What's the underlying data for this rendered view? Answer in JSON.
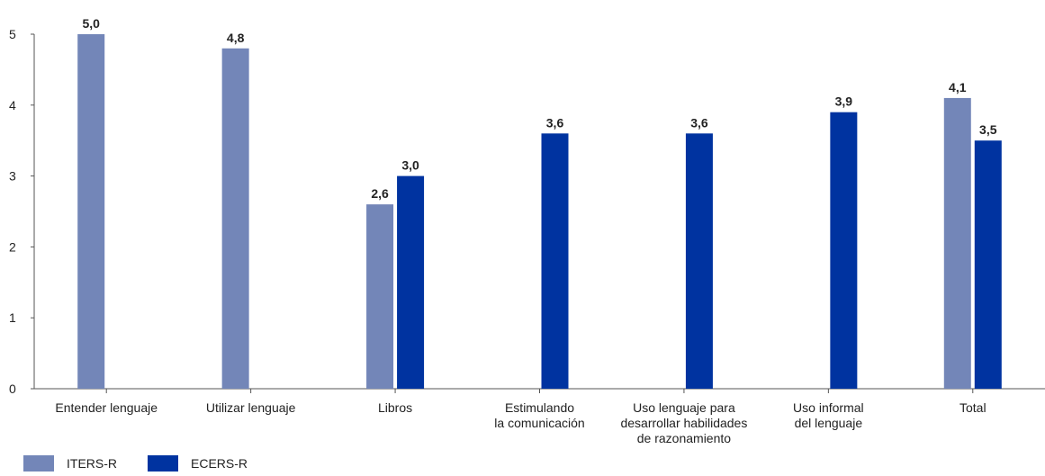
{
  "chart_data": {
    "type": "bar",
    "categories": [
      [
        "Entender lenguaje"
      ],
      [
        "Utilizar lenguaje"
      ],
      [
        "Libros"
      ],
      [
        "Estimulando",
        "la comunicación"
      ],
      [
        "Uso lenguaje para",
        "desarrollar habilidades",
        "de razonamiento"
      ],
      [
        "Uso informal",
        "del lenguaje"
      ],
      [
        "Total"
      ]
    ],
    "series": [
      {
        "name": "ITERS-R",
        "color": "#7386b8",
        "values": [
          5.0,
          4.8,
          2.6,
          null,
          null,
          null,
          4.1
        ],
        "labels": [
          "5,0",
          "4,8",
          "2,6",
          null,
          null,
          null,
          "4,1"
        ]
      },
      {
        "name": "ECERS-R",
        "color": "#0033a0",
        "values": [
          null,
          null,
          3.0,
          3.6,
          3.6,
          3.9,
          3.5
        ],
        "labels": [
          null,
          null,
          "3,0",
          "3,6",
          "3,6",
          "3,9",
          "3,5"
        ]
      }
    ],
    "ylim": [
      0,
      5
    ],
    "yticks": [
      0,
      1,
      2,
      3,
      4,
      5
    ],
    "grid": false,
    "legend_position": "bottom-left"
  }
}
